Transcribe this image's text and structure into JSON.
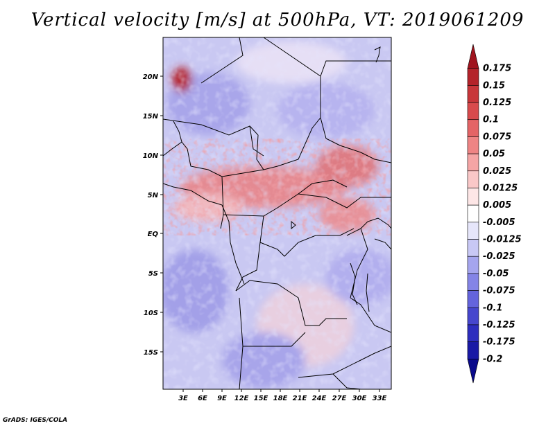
{
  "title": "Vertical velocity [m/s] at 500hPa, VT: 2019061209",
  "footer": "GrADS: IGES/COLA",
  "map": {
    "lat_ticks": [
      "20N",
      "15N",
      "10N",
      "5N",
      "EQ",
      "5S",
      "10S",
      "15S"
    ],
    "lon_ticks": [
      "3E",
      "6E",
      "9E",
      "12E",
      "15E",
      "18E",
      "21E",
      "24E",
      "27E",
      "30E",
      "33E"
    ]
  },
  "colorbar": {
    "labels": [
      "0.175",
      "0.15",
      "0.125",
      "0.1",
      "0.075",
      "0.05",
      "0.025",
      "0.0125",
      "0.005",
      "-0.005",
      "-0.0125",
      "-0.025",
      "-0.05",
      "-0.075",
      "-0.1",
      "-0.125",
      "-0.175",
      "-0.2"
    ],
    "colors": [
      "#a0141e",
      "#b4232a",
      "#c8363a",
      "#d84a4c",
      "#e46466",
      "#ee8484",
      "#f5a5a5",
      "#fac8c8",
      "#fde6e6",
      "#ffffff",
      "#e6e6fa",
      "#c8c8f5",
      "#a5a5ee",
      "#8484e6",
      "#6464dc",
      "#4646cd",
      "#2d2dbe",
      "#1919a5",
      "#0a0a8c"
    ]
  }
}
